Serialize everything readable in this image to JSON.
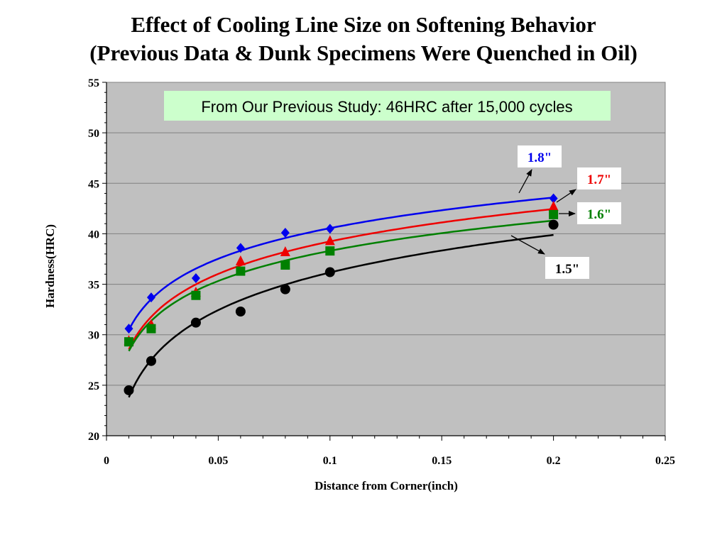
{
  "title_line1": "Effect of Cooling Line Size on Softening Behavior",
  "title_line2": "(Previous Data & Dunk Specimens Were Quenched in Oil)",
  "annotation": "From Our Previous Study: 46HRC after 15,000 cycles",
  "chart_data": {
    "type": "scatter",
    "title": "Effect of Cooling Line Size on Softening Behavior (Previous Data & Dunk Specimens Were Quenched in Oil)",
    "xlabel": "Distance from Corner(inch)",
    "ylabel": "Hardness(HRC)",
    "xlim": [
      0,
      0.25
    ],
    "ylim": [
      20,
      55
    ],
    "xticks": [
      "0",
      "0.05",
      "0.1",
      "0.15",
      "0.2",
      "0.25"
    ],
    "yticks": [
      "20",
      "25",
      "30",
      "35",
      "40",
      "45",
      "50",
      "55"
    ],
    "grid": "horizontal",
    "background": "#c0c0c0",
    "trendline": "logarithmic",
    "series": [
      {
        "name": "1.8\"",
        "color": "#0000ee",
        "marker": "diamond",
        "x": [
          0.01,
          0.02,
          0.04,
          0.06,
          0.08,
          0.1,
          0.2
        ],
        "y": [
          30.6,
          33.7,
          35.6,
          38.6,
          40.1,
          40.5,
          43.5
        ]
      },
      {
        "name": "1.7\"",
        "color": "#ee0000",
        "marker": "triangle",
        "x": [
          0.01,
          0.02,
          0.04,
          0.06,
          0.08,
          0.1,
          0.2
        ],
        "y": [
          29.4,
          31.0,
          34.2,
          37.3,
          38.2,
          39.3,
          42.7
        ]
      },
      {
        "name": "1.6\"",
        "color": "#008000",
        "marker": "square",
        "x": [
          0.01,
          0.02,
          0.04,
          0.06,
          0.08,
          0.1,
          0.2
        ],
        "y": [
          29.3,
          30.6,
          33.9,
          36.3,
          36.9,
          38.3,
          41.9
        ]
      },
      {
        "name": "1.5\"",
        "color": "#000000",
        "marker": "circle",
        "x": [
          0.01,
          0.02,
          0.04,
          0.06,
          0.08,
          0.1,
          0.2
        ],
        "y": [
          24.5,
          27.4,
          31.2,
          32.3,
          34.5,
          36.2,
          40.9
        ]
      }
    ]
  }
}
